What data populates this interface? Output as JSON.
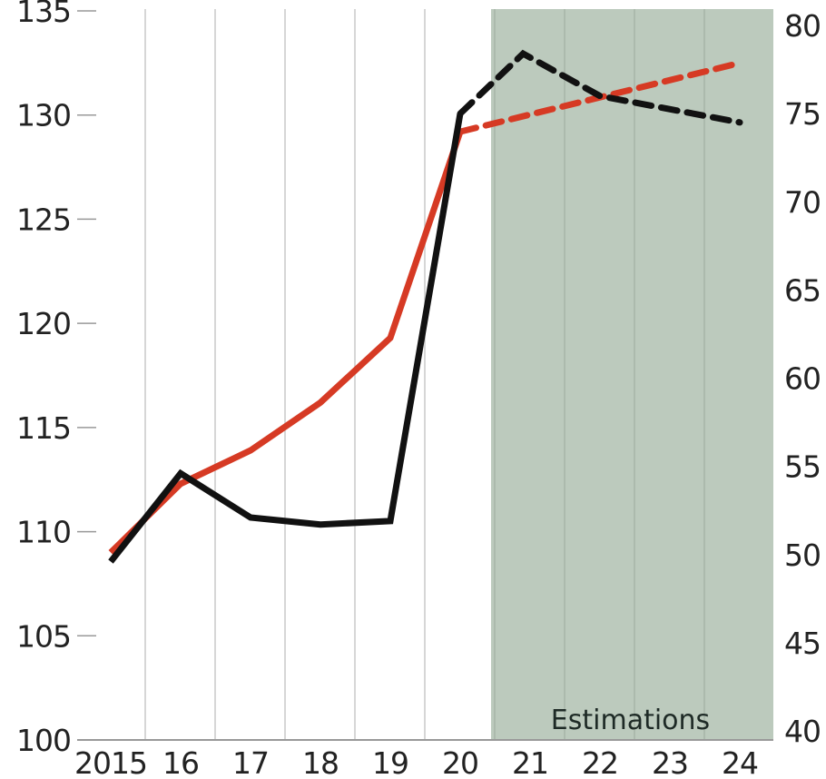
{
  "chart_data": {
    "type": "line",
    "x": [
      "2015",
      "16",
      "17",
      "18",
      "19",
      "20",
      "21",
      "22",
      "23",
      "24"
    ],
    "y_left": {
      "min": 100,
      "max": 135,
      "ticks": [
        100,
        105,
        110,
        115,
        120,
        125,
        130,
        135
      ]
    },
    "y_right": {
      "min": 40,
      "max": 80,
      "ticks": [
        40,
        45,
        50,
        55,
        60,
        65,
        70,
        75,
        80
      ]
    },
    "grid": true,
    "shaded_region": {
      "from": "20",
      "to": "24",
      "label": "Estimations",
      "color": "#bccabd"
    },
    "series": [
      {
        "axis": "left",
        "color": "#d63a24",
        "points": [
          {
            "x": 0,
            "y": 109.0
          },
          {
            "x": 1,
            "y": 112.3
          },
          {
            "x": 2,
            "y": 113.9
          },
          {
            "x": 3,
            "y": 116.2
          },
          {
            "x": 4,
            "y": 119.3
          },
          {
            "x": 5,
            "y": 129.2
          },
          {
            "x": 9,
            "y": 132.5
          }
        ],
        "estimate_from_index": 5
      },
      {
        "axis": "right",
        "color": "#111111",
        "points": [
          {
            "x": 0,
            "y": 49.6
          },
          {
            "x": 1,
            "y": 54.6
          },
          {
            "x": 2,
            "y": 52.1
          },
          {
            "x": 3,
            "y": 51.7
          },
          {
            "x": 4,
            "y": 51.9
          },
          {
            "x": 5,
            "y": 75.0
          },
          {
            "x": 5.9,
            "y": 78.4
          },
          {
            "x": 7,
            "y": 76.0
          },
          {
            "x": 9,
            "y": 74.5
          }
        ],
        "estimate_from_index": 5
      }
    ]
  }
}
